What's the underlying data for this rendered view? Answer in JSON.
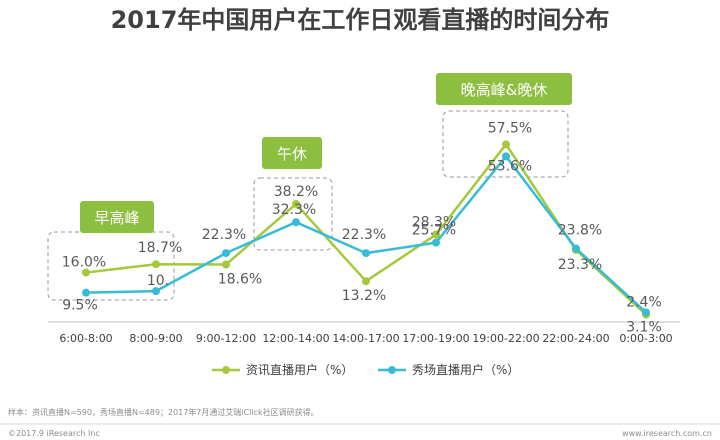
{
  "chart_data": {
    "type": "line",
    "title": "2017年中国用户在工作日观看直播的时间分布",
    "categories": [
      "6:00-8:00",
      "8:00-9:00",
      "9:00-12:00",
      "12:00-14:00",
      "14:00-17:00",
      "17:00-19:00",
      "19:00-22:00",
      "22:00-24:00",
      "0:00-3:00"
    ],
    "series": [
      {
        "name": "资讯直播用户（%）",
        "values": [
          16.0,
          18.7,
          18.6,
          38.2,
          13.2,
          28.3,
          57.5,
          23.3,
          2.4
        ],
        "labels": [
          "16.0%",
          "18.7%",
          "18.6%",
          "38.2%",
          "13.2%",
          "28.3%",
          "57.5%",
          "23.3%",
          "2.4%"
        ],
        "color": "#a5c93b"
      },
      {
        "name": "秀场直播用户（%）",
        "values": [
          9.5,
          10.0,
          22.3,
          32.3,
          22.3,
          25.7,
          53.6,
          23.8,
          3.1
        ],
        "labels": [
          "9.5%",
          "10.",
          "22.3%",
          "32.3%",
          "22.3%",
          "25.7%",
          "53.6%",
          "23.8%",
          "3.1%"
        ],
        "color": "#37bcd6"
      }
    ],
    "annotations": [
      {
        "text": "早高峰",
        "range": [
          0,
          1
        ]
      },
      {
        "text": "午休",
        "range": [
          3,
          3
        ]
      },
      {
        "text": "晚高峰&晚休",
        "range": [
          6,
          6
        ]
      }
    ],
    "ylim": [
      0,
      65
    ],
    "grid": false,
    "legend_position": "bottom"
  },
  "footnote": "样本：资讯直播N=590，秀场直播N=489；2017年7月通过艾瑞iClick社区调研获得。",
  "footer_left": "©2017.9 iResearch Inc",
  "footer_right": "www.iresearch.com.cn",
  "colors": {
    "tag_fill": "#8cbf3f",
    "dash": "#9a9a9a"
  }
}
